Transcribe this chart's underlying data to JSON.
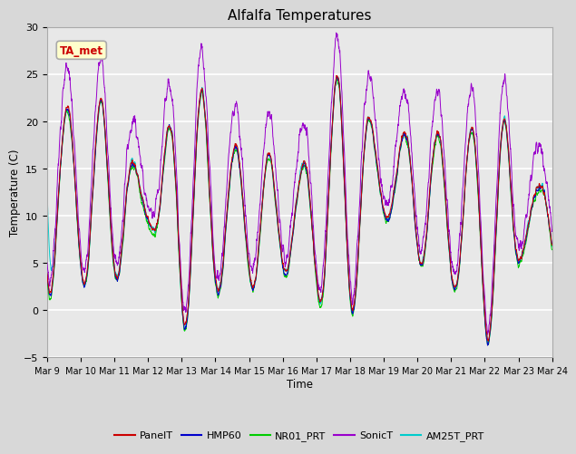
{
  "title": "Alfalfa Temperatures",
  "xlabel": "Time",
  "ylabel": "Temperature (C)",
  "ylim": [
    -5,
    30
  ],
  "yticks": [
    -5,
    0,
    5,
    10,
    15,
    20,
    25,
    30
  ],
  "xtick_labels": [
    "Mar 9",
    "Mar 10",
    "Mar 11",
    "Mar 12",
    "Mar 13",
    "Mar 14",
    "Mar 15",
    "Mar 16",
    "Mar 17",
    "Mar 18",
    "Mar 19",
    "Mar 20",
    "Mar 21",
    "Mar 22",
    "Mar 23",
    "Mar 24"
  ],
  "series_colors": {
    "PanelT": "#cc0000",
    "HMP60": "#0000cc",
    "NR01_PRT": "#00cc00",
    "SonicT": "#9900cc",
    "AM25T_PRT": "#00cccc"
  },
  "legend_labels": [
    "PanelT",
    "HMP60",
    "NR01_PRT",
    "SonicT",
    "AM25T_PRT"
  ],
  "annotation_text": "TA_met",
  "annotation_color": "#cc0000",
  "annotation_bg": "#ffffcc",
  "annotation_edge": "#aaaaaa",
  "fig_bg": "#d8d8d8",
  "plot_bg": "#e8e8e8",
  "grid_color": "#ffffff",
  "title_fontsize": 11,
  "n_points": 2880,
  "days": 15
}
